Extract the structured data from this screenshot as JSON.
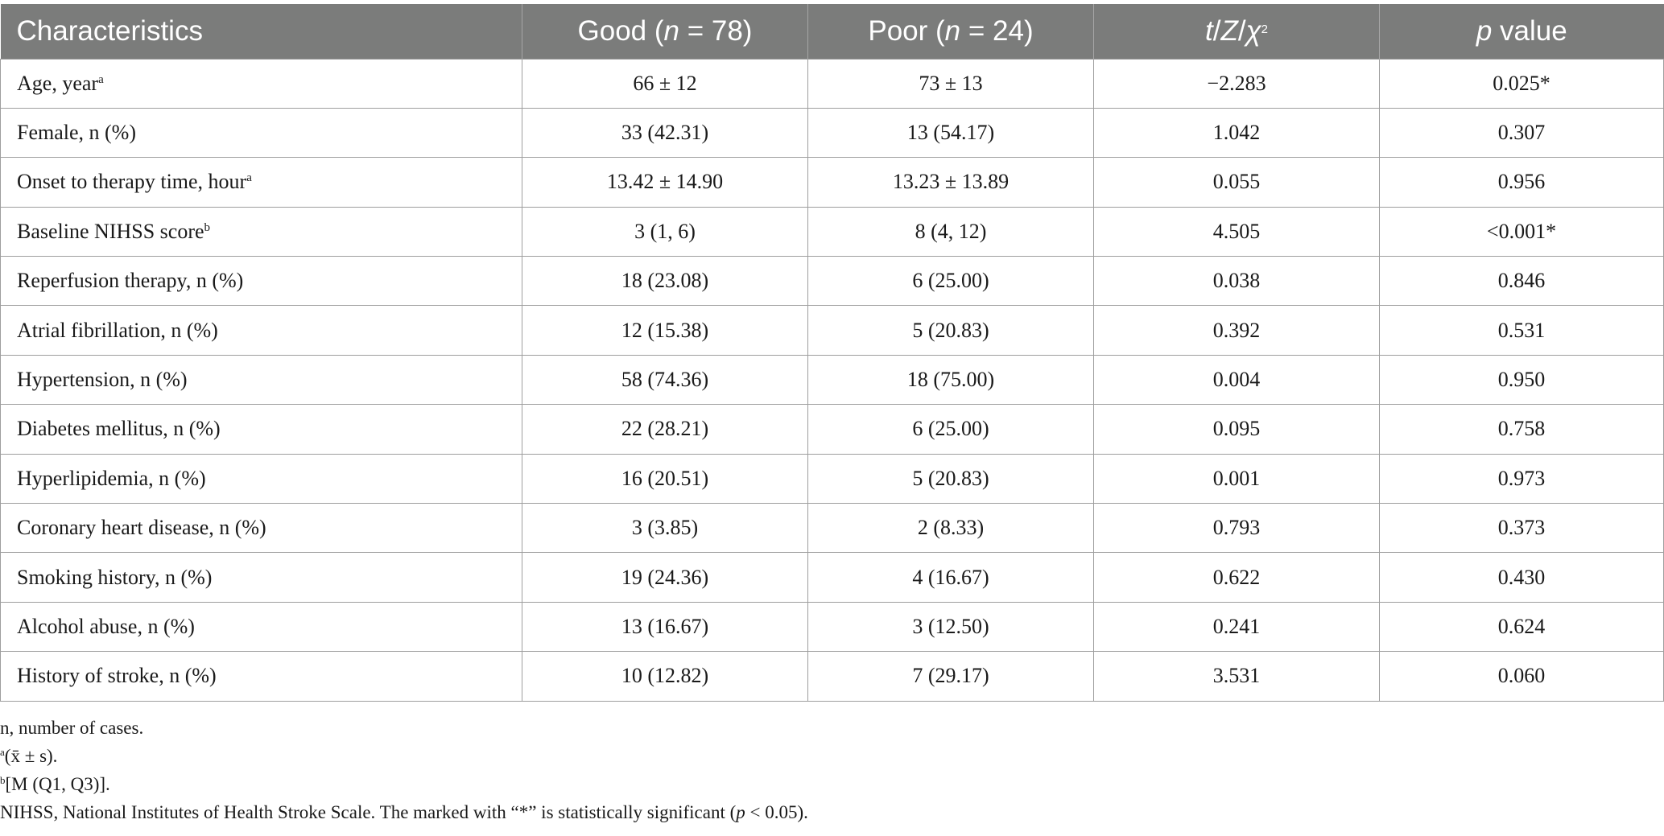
{
  "table": {
    "headers": {
      "col0": "Characteristics",
      "col1_prefix": "Good (",
      "col1_n": "n",
      "col1_suffix": " = 78)",
      "col2_prefix": "Poor (",
      "col2_n": "n",
      "col2_suffix": " = 24)",
      "col3_a": "t",
      "col3_b": "/",
      "col3_c": "Z",
      "col3_d": "/",
      "col3_e": "χ",
      "col3_sup": "2",
      "col4_p": "p",
      "col4_suffix": " value"
    },
    "rows": [
      {
        "label": "Age, year",
        "sup": "a",
        "good": "66 ± 12",
        "poor": "73 ± 13",
        "stat": "−2.283",
        "p": "0.025*"
      },
      {
        "label": "Female, n (%)",
        "sup": "",
        "good": "33 (42.31)",
        "poor": "13 (54.17)",
        "stat": "1.042",
        "p": "0.307"
      },
      {
        "label": "Onset to therapy time, hour",
        "sup": "a",
        "good": "13.42 ± 14.90",
        "poor": "13.23 ± 13.89",
        "stat": "0.055",
        "p": "0.956"
      },
      {
        "label": "Baseline NIHSS score",
        "sup": "b",
        "good": "3 (1, 6)",
        "poor": "8 (4, 12)",
        "stat": "4.505",
        "p": "<0.001*"
      },
      {
        "label": "Reperfusion therapy, n (%)",
        "sup": "",
        "good": "18 (23.08)",
        "poor": "6 (25.00)",
        "stat": "0.038",
        "p": "0.846"
      },
      {
        "label": "Atrial fibrillation, n (%)",
        "sup": "",
        "good": "12 (15.38)",
        "poor": "5 (20.83)",
        "stat": "0.392",
        "p": "0.531"
      },
      {
        "label": "Hypertension, n (%)",
        "sup": "",
        "good": "58 (74.36)",
        "poor": "18 (75.00)",
        "stat": "0.004",
        "p": "0.950"
      },
      {
        "label": "Diabetes mellitus, n (%)",
        "sup": "",
        "good": "22 (28.21)",
        "poor": "6 (25.00)",
        "stat": "0.095",
        "p": "0.758"
      },
      {
        "label": "Hyperlipidemia, n (%)",
        "sup": "",
        "good": "16 (20.51)",
        "poor": "5 (20.83)",
        "stat": "0.001",
        "p": "0.973"
      },
      {
        "label": "Coronary heart disease, n (%)",
        "sup": "",
        "good": "3 (3.85)",
        "poor": "2 (8.33)",
        "stat": "0.793",
        "p": "0.373"
      },
      {
        "label": "Smoking history, n (%)",
        "sup": "",
        "good": "19 (24.36)",
        "poor": "4 (16.67)",
        "stat": "0.622",
        "p": "0.430"
      },
      {
        "label": "Alcohol abuse, n (%)",
        "sup": "",
        "good": "13 (16.67)",
        "poor": "3 (12.50)",
        "stat": "0.241",
        "p": "0.624"
      },
      {
        "label": "History of stroke, n (%)",
        "sup": "",
        "good": "10 (12.82)",
        "poor": "7 (29.17)",
        "stat": "3.531",
        "p": "0.060"
      }
    ]
  },
  "notes": {
    "n_def": "n, number of cases.",
    "a_sup": "a",
    "a_text": "(x̄ ± s).",
    "b_sup": "b",
    "b_text": "[M (Q1, Q3)].",
    "nihss_pre": "NIHSS, National Institutes of Health Stroke Scale. The marked with “*” is statistically significant (",
    "nihss_p": "p",
    "nihss_post": " < 0.05)."
  }
}
